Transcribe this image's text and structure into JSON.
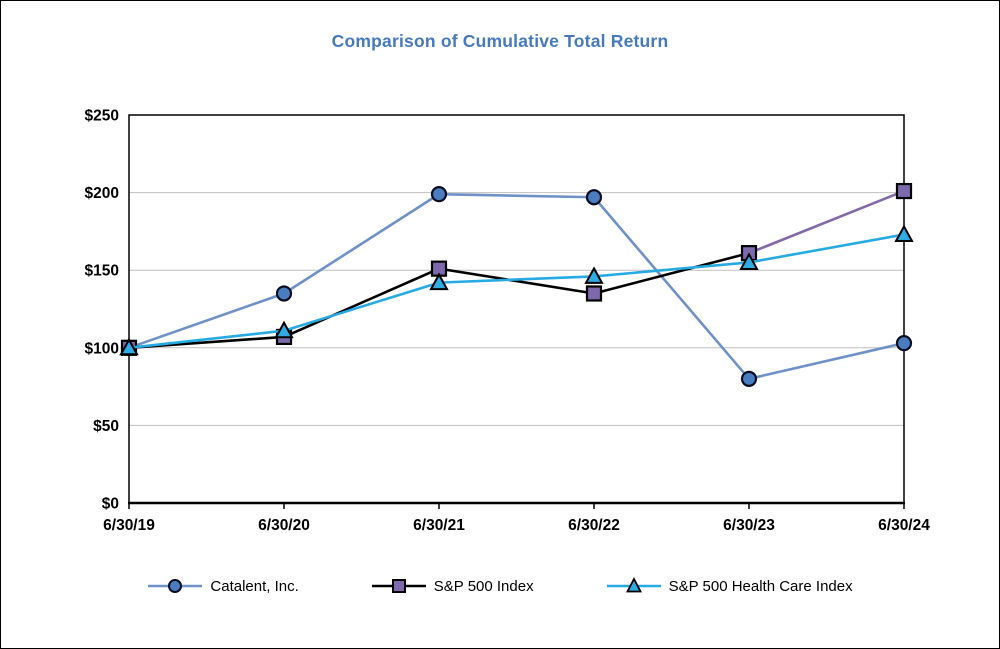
{
  "window": {
    "background": "#ffffff",
    "border_color": "#000000"
  },
  "chart": {
    "title": "Comparison of Cumulative Total Return",
    "title_color": "#4779BD"
  },
  "chart_data": {
    "type": "line",
    "title": "Comparison of Cumulative Total Return",
    "categories": [
      "6/30/19",
      "6/30/20",
      "6/30/21",
      "6/30/22",
      "6/30/23",
      "6/30/24"
    ],
    "series": [
      {
        "name": "Catalent, Inc.",
        "marker": "circle",
        "line_color": "#7091C6",
        "marker_fill": "#4A7CC0",
        "marker_stroke": "#0D0D20",
        "values": [
          100,
          135,
          199,
          197,
          80,
          103
        ]
      },
      {
        "name": "S&P 500 Index",
        "marker": "square",
        "line_color": "#000000",
        "segment_colors": [
          "#000000",
          "#000000",
          "#000000",
          "#000000",
          "#8269A9"
        ],
        "marker_fill": "#7E69AD",
        "marker_stroke": "#000000",
        "values": [
          100,
          107,
          151,
          135,
          161,
          201
        ]
      },
      {
        "name": "S&P 500 Health Care Index",
        "marker": "triangle",
        "line_color": "#27AAE1",
        "marker_fill": "#2FACE3",
        "marker_stroke": "#000000",
        "values": [
          100,
          111,
          142,
          146,
          155,
          173
        ]
      }
    ],
    "xlabel": "",
    "ylabel": "",
    "ylim": [
      0,
      250
    ],
    "y_ticks": [
      "$0",
      "$50",
      "$100",
      "$150",
      "$200",
      "$250"
    ],
    "y_tick_values": [
      0,
      50,
      100,
      150,
      200,
      250
    ],
    "grid": "horizontal",
    "gridline_color": "#BFBFBF",
    "axis_color": "#000000",
    "tick_label_color": "#000000",
    "legend_position": "bottom"
  }
}
